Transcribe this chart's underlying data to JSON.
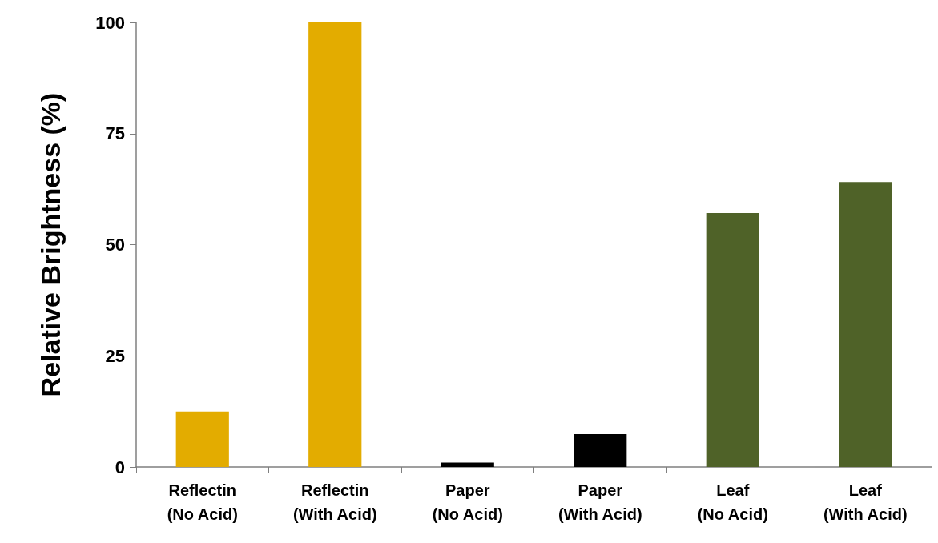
{
  "chart_data": {
    "type": "bar",
    "ylabel": "Relative Brightness (%)",
    "categories": [
      "Reflectin\n(No Acid)",
      "Reflectin\n(With Acid)",
      "Paper\n(No Acid)",
      "Paper\n(With Acid)",
      "Leaf\n(No Acid)",
      "Leaf\n(With Acid)"
    ],
    "values": [
      12.5,
      100,
      1,
      7.4,
      57.1,
      64.1
    ],
    "colors": [
      "#e3ac00",
      "#e3ac00",
      "#000000",
      "#000000",
      "#4f6228",
      "#4f6228"
    ],
    "ylim": [
      0,
      100
    ],
    "yticks": [
      0,
      25,
      50,
      75,
      100
    ],
    "grid": false
  }
}
